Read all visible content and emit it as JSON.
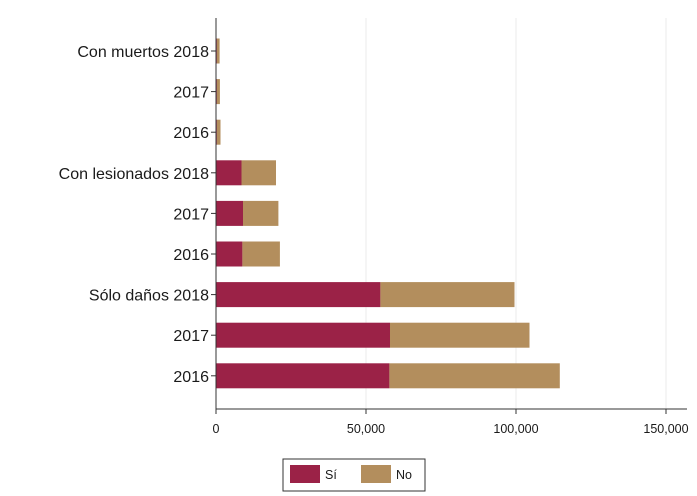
{
  "chart_data": {
    "type": "bar",
    "orientation": "horizontal",
    "stacked": true,
    "categories": [
      "Con muertos 2018",
      "2017",
      "2016",
      "Con lesionados 2018",
      "2017",
      "2016",
      "Sólo daños 2018",
      "2017",
      "2016"
    ],
    "series": [
      {
        "name": "Sí",
        "color": "#9b2247",
        "values": [
          300,
          300,
          300,
          8500,
          9000,
          8800,
          54800,
          58000,
          57800
        ]
      },
      {
        "name": "No",
        "color": "#b38e5d",
        "values": [
          900,
          1000,
          1200,
          11500,
          11800,
          12500,
          44700,
          46500,
          56800
        ]
      }
    ],
    "xlim": [
      0,
      157000
    ],
    "xticks": [
      0,
      50000,
      100000,
      150000
    ],
    "xtick_labels": [
      "0",
      "50,000",
      "100,000",
      "150,000"
    ],
    "grid": true,
    "legend_position": "bottom-center"
  }
}
